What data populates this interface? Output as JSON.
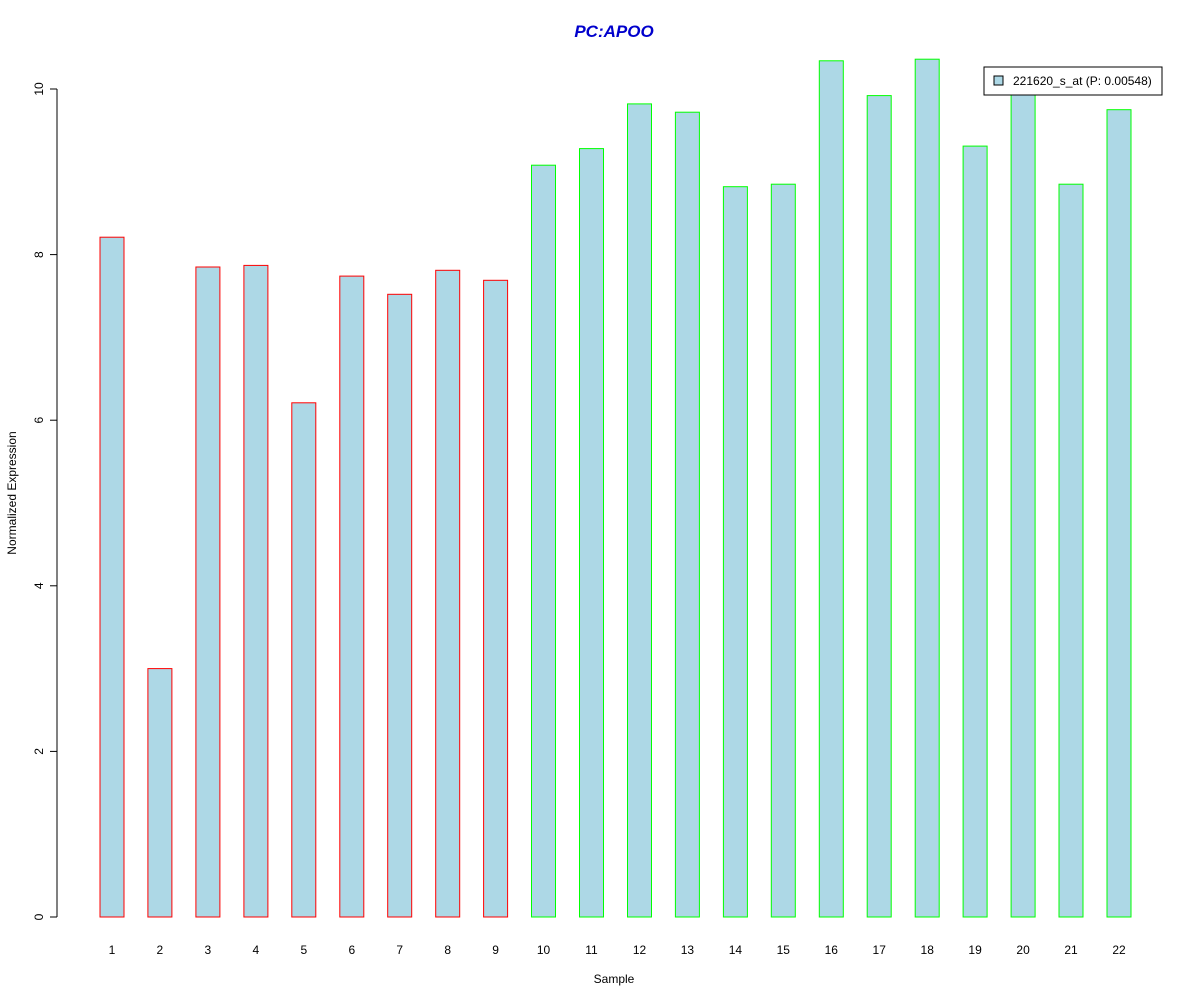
{
  "chart_data": {
    "type": "bar",
    "title": "PC:APOO",
    "xlabel": "Sample",
    "ylabel": "Normalized Expression",
    "categories": [
      "1",
      "2",
      "3",
      "4",
      "5",
      "6",
      "7",
      "8",
      "9",
      "10",
      "11",
      "12",
      "13",
      "14",
      "15",
      "16",
      "17",
      "18",
      "19",
      "20",
      "21",
      "22"
    ],
    "series": [
      {
        "name": "221620_s_at (P: 0.00548)",
        "values": [
          8.21,
          3.0,
          7.85,
          7.87,
          6.21,
          7.74,
          7.52,
          7.81,
          7.69,
          9.08,
          9.28,
          9.82,
          9.72,
          8.82,
          8.85,
          10.34,
          9.92,
          10.36,
          9.31,
          9.95,
          8.85,
          9.75
        ]
      }
    ],
    "ylim": [
      0,
      10.4
    ],
    "yticks": [
      "0",
      "2",
      "4",
      "6",
      "8",
      "10"
    ],
    "grid": false,
    "legend_position": "top-right",
    "colors": {
      "title": "#0000cc",
      "bar_fill": "#add8e6",
      "group_1_border": "#ff0000",
      "group_2_border": "#00ff00",
      "axis": "#000000"
    },
    "bar_groups": [
      "1",
      "1",
      "1",
      "1",
      "1",
      "1",
      "1",
      "1",
      "1",
      "2",
      "2",
      "2",
      "2",
      "2",
      "2",
      "2",
      "2",
      "2",
      "2",
      "2",
      "2",
      "2"
    ]
  }
}
